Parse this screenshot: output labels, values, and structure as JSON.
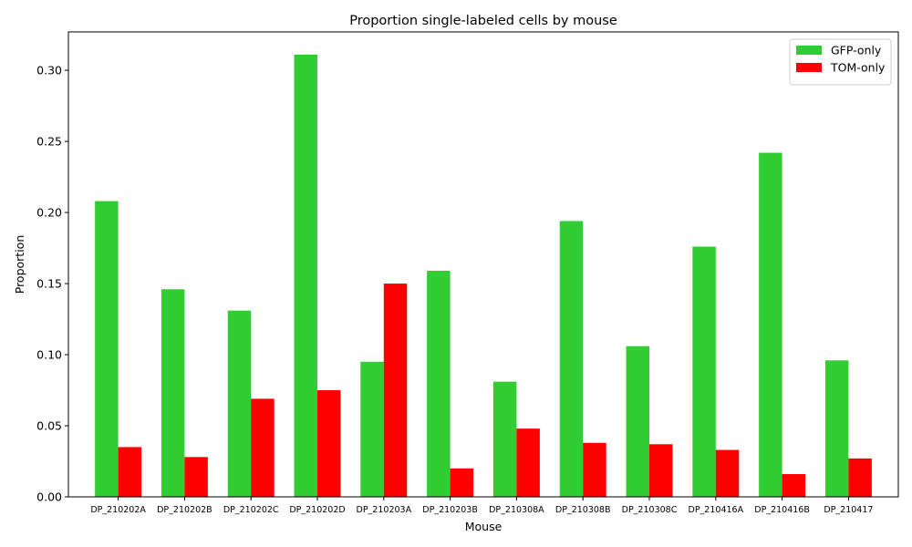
{
  "chart_data": {
    "type": "bar",
    "title": "Proportion single-labeled cells by mouse",
    "xlabel": "Mouse",
    "ylabel": "Proportion",
    "ylim": [
      0,
      0.327
    ],
    "yticks": [
      "0.00",
      "0.05",
      "0.10",
      "0.15",
      "0.20",
      "0.25",
      "0.30"
    ],
    "legend_position": "top-right",
    "grid": false,
    "categories": [
      "DP_210202A",
      "DP_210202B",
      "DP_210202C",
      "DP_210202D",
      "DP_210203A",
      "DP_210203B",
      "DP_210308A",
      "DP_210308B",
      "DP_210308C",
      "DP_210416A",
      "DP_210416B",
      "DP_210417"
    ],
    "series": [
      {
        "name": "GFP-only",
        "color": "#32cd32",
        "values": [
          0.208,
          0.146,
          0.131,
          0.311,
          0.095,
          0.159,
          0.081,
          0.194,
          0.106,
          0.176,
          0.242,
          0.096
        ]
      },
      {
        "name": "TOM-only",
        "color": "#ff0000",
        "values": [
          0.035,
          0.028,
          0.069,
          0.075,
          0.15,
          0.02,
          0.048,
          0.038,
          0.037,
          0.033,
          0.016,
          0.027
        ]
      }
    ]
  }
}
